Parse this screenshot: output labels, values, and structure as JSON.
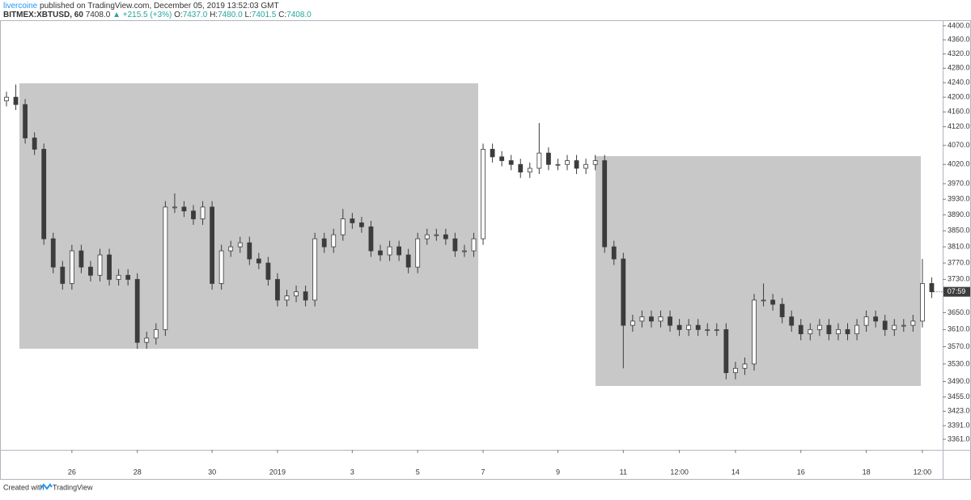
{
  "header": {
    "author": "livercoine",
    "published": "published on TradingView.com, December 05, 2019 13:52:03 GMT",
    "symbol": "BITMEX:XBTUSD, 60",
    "last": "7408.0",
    "change": "▲ +215.5 (+3%)",
    "o_label": "O:",
    "o": "7437.0",
    "h_label": "H:",
    "h": "7480.0",
    "l_label": "L:",
    "l": "7401.5",
    "c_label": "C:",
    "c": "7408.0"
  },
  "footer": {
    "prefix": "Created with",
    "brand": "TradingView"
  },
  "chart_data": {
    "type": "candlestick",
    "log_scale": true,
    "grid": false,
    "up_color": "#ffffff",
    "down_color": "#3c3c3c",
    "edge_color": "#3c3c3c",
    "last_price_label": "07:59",
    "ylim": [
      3338,
      4416
    ],
    "yticks": [
      {
        "value": 4400,
        "label": "4400.0"
      },
      {
        "value": 4360,
        "label": "4360.0"
      },
      {
        "value": 4320,
        "label": "4320.0"
      },
      {
        "value": 4280,
        "label": "4280.0"
      },
      {
        "value": 4240,
        "label": "4240.0"
      },
      {
        "value": 4200,
        "label": "4200.0"
      },
      {
        "value": 4160,
        "label": "4160.0"
      },
      {
        "value": 4120,
        "label": "4120.0"
      },
      {
        "value": 4070,
        "label": "4070.0"
      },
      {
        "value": 4020,
        "label": "4020.0"
      },
      {
        "value": 3970,
        "label": "3970.0"
      },
      {
        "value": 3930,
        "label": "3930.0"
      },
      {
        "value": 3890,
        "label": "3890.0"
      },
      {
        "value": 3850,
        "label": "3850.0"
      },
      {
        "value": 3810,
        "label": "3810.0"
      },
      {
        "value": 3770,
        "label": "3770.0"
      },
      {
        "value": 3730,
        "label": "3730.0"
      },
      {
        "value": 3650,
        "label": "3650.0"
      },
      {
        "value": 3610,
        "label": "3610.0"
      },
      {
        "value": 3570,
        "label": "3570.0"
      },
      {
        "value": 3530,
        "label": "3530.0"
      },
      {
        "value": 3490,
        "label": "3490.0"
      },
      {
        "value": 3455,
        "label": "3455.0"
      },
      {
        "value": 3423,
        "label": "3423.0"
      },
      {
        "value": 3391,
        "label": "3391.0"
      },
      {
        "value": 3361,
        "label": "3361.0"
      }
    ],
    "categories": [
      null,
      null,
      null,
      null,
      null,
      null,
      null,
      "26",
      null,
      null,
      null,
      null,
      null,
      null,
      "28",
      null,
      null,
      null,
      null,
      null,
      null,
      null,
      "30",
      null,
      null,
      null,
      null,
      null,
      null,
      "2019",
      null,
      null,
      null,
      null,
      null,
      null,
      null,
      "3",
      null,
      null,
      null,
      null,
      null,
      null,
      "5",
      null,
      null,
      null,
      null,
      null,
      null,
      "7",
      null,
      null,
      null,
      null,
      null,
      null,
      null,
      "9",
      null,
      null,
      null,
      null,
      null,
      null,
      "11",
      null,
      null,
      null,
      null,
      null,
      "12:00",
      null,
      null,
      null,
      null,
      null,
      "14",
      null,
      null,
      null,
      null,
      null,
      null,
      "16",
      null,
      null,
      null,
      null,
      null,
      null,
      "18",
      null,
      null,
      null,
      null,
      null,
      "12:00",
      null
    ],
    "open": [
      4190,
      4200,
      4180,
      4090,
      4060,
      3830,
      3760,
      3720,
      3800,
      3760,
      3740,
      3790,
      3730,
      3740,
      3730,
      3580,
      3590,
      3610,
      3910,
      3910,
      3900,
      3880,
      3910,
      3720,
      3800,
      3810,
      3820,
      3780,
      3770,
      3730,
      3680,
      3690,
      3700,
      3680,
      3830,
      3810,
      3840,
      3880,
      3870,
      3860,
      3800,
      3790,
      3810,
      3790,
      3760,
      3830,
      3840,
      3840,
      3830,
      3800,
      3800,
      3830,
      4060,
      4040,
      4030,
      4020,
      4000,
      4010,
      4050,
      4020,
      4020,
      4030,
      4010,
      4020,
      4030,
      3810,
      3780,
      3620,
      3630,
      3640,
      3630,
      3640,
      3620,
      3610,
      3620,
      3610,
      3610,
      3610,
      3510,
      3520,
      3530,
      3680,
      3680,
      3670,
      3640,
      3620,
      3600,
      3610,
      3620,
      3600,
      3610,
      3600,
      3620,
      3640,
      3630,
      3610,
      3620,
      3620,
      3630,
      3720
    ],
    "high": [
      4215,
      4235,
      4195,
      4105,
      4075,
      3845,
      3775,
      3815,
      3815,
      3775,
      3805,
      3805,
      3755,
      3755,
      3745,
      3605,
      3625,
      3925,
      3945,
      3925,
      3915,
      3925,
      3925,
      3815,
      3825,
      3835,
      3835,
      3795,
      3785,
      3745,
      3705,
      3715,
      3715,
      3845,
      3845,
      3855,
      3905,
      3895,
      3885,
      3875,
      3815,
      3825,
      3825,
      3805,
      3845,
      3855,
      3855,
      3855,
      3845,
      3815,
      3845,
      4075,
      4075,
      4055,
      4045,
      4035,
      4025,
      4130,
      4065,
      4035,
      4045,
      4045,
      4035,
      4045,
      4045,
      3825,
      3795,
      3645,
      3655,
      3655,
      3655,
      3655,
      3635,
      3635,
      3635,
      3625,
      3625,
      3625,
      3535,
      3545,
      3695,
      3720,
      3695,
      3685,
      3655,
      3635,
      3625,
      3635,
      3635,
      3625,
      3625,
      3635,
      3655,
      3655,
      3645,
      3635,
      3635,
      3645,
      3780,
      3735
    ],
    "low": [
      4175,
      4165,
      4075,
      4045,
      3815,
      3745,
      3705,
      3705,
      3745,
      3725,
      3725,
      3715,
      3715,
      3715,
      3565,
      3565,
      3575,
      3595,
      3895,
      3885,
      3865,
      3865,
      3705,
      3705,
      3785,
      3795,
      3765,
      3755,
      3715,
      3665,
      3665,
      3675,
      3665,
      3665,
      3795,
      3795,
      3825,
      3855,
      3845,
      3785,
      3775,
      3775,
      3775,
      3745,
      3745,
      3815,
      3825,
      3815,
      3785,
      3785,
      3785,
      3815,
      4025,
      4015,
      4005,
      3985,
      3985,
      3995,
      4005,
      4005,
      4005,
      3995,
      3995,
      4005,
      3795,
      3765,
      3520,
      3605,
      3615,
      3615,
      3615,
      3605,
      3595,
      3595,
      3595,
      3595,
      3595,
      3495,
      3495,
      3505,
      3515,
      3665,
      3655,
      3625,
      3605,
      3585,
      3585,
      3595,
      3585,
      3585,
      3585,
      3585,
      3605,
      3615,
      3595,
      3595,
      3605,
      3605,
      3615,
      3685
    ],
    "close": [
      4200,
      4180,
      4090,
      4060,
      3830,
      3760,
      3720,
      3800,
      3760,
      3740,
      3790,
      3730,
      3740,
      3730,
      3580,
      3590,
      3610,
      3910,
      3910,
      3900,
      3880,
      3910,
      3720,
      3800,
      3810,
      3820,
      3780,
      3770,
      3730,
      3680,
      3690,
      3700,
      3680,
      3830,
      3810,
      3840,
      3880,
      3870,
      3860,
      3800,
      3790,
      3810,
      3790,
      3760,
      3830,
      3840,
      3840,
      3830,
      3800,
      3800,
      3830,
      4060,
      4040,
      4030,
      4020,
      4000,
      4010,
      4050,
      4020,
      4020,
      4030,
      4010,
      4020,
      4030,
      3810,
      3780,
      3620,
      3630,
      3640,
      3630,
      3640,
      3620,
      3610,
      3620,
      3610,
      3610,
      3610,
      3510,
      3520,
      3530,
      3680,
      3680,
      3670,
      3640,
      3620,
      3600,
      3610,
      3620,
      3600,
      3610,
      3600,
      3620,
      3640,
      3630,
      3610,
      3620,
      3620,
      3630,
      3720,
      3700
    ]
  }
}
